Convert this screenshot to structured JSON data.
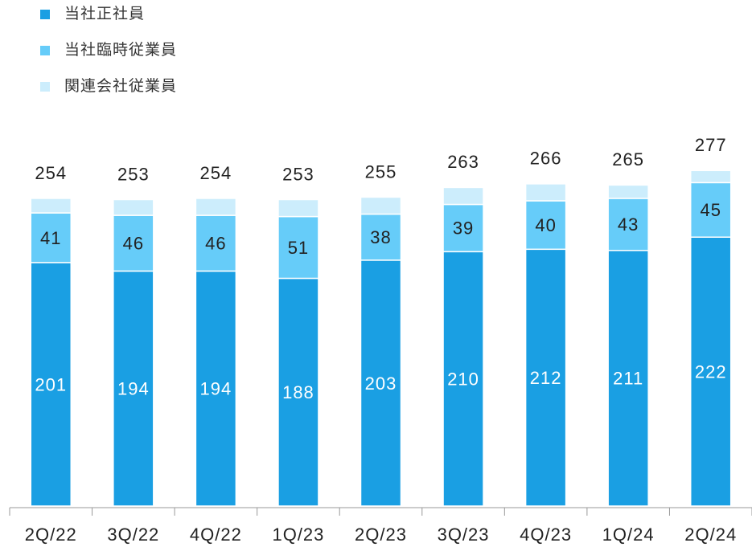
{
  "chart_data": {
    "type": "stacked_bar",
    "categories": [
      "2Q/22",
      "3Q/22",
      "4Q/22",
      "1Q/23",
      "2Q/23",
      "3Q/23",
      "4Q/23",
      "1Q/24",
      "2Q/24"
    ],
    "series": [
      {
        "name": "当社正社員",
        "color": "#1a9fe3",
        "values": [
          201,
          194,
          194,
          188,
          203,
          210,
          212,
          211,
          222
        ]
      },
      {
        "name": "当社臨時従業員",
        "color": "#66ccf9",
        "values": [
          41,
          46,
          46,
          51,
          38,
          39,
          40,
          43,
          45
        ]
      },
      {
        "name": "関連会社従業員",
        "color": "#ccedfc",
        "values": [
          12,
          13,
          14,
          14,
          14,
          14,
          14,
          11,
          10
        ]
      }
    ],
    "totals": [
      254,
      253,
      254,
      253,
      255,
      263,
      266,
      265,
      277
    ],
    "ylim": [
      0,
      300
    ]
  }
}
